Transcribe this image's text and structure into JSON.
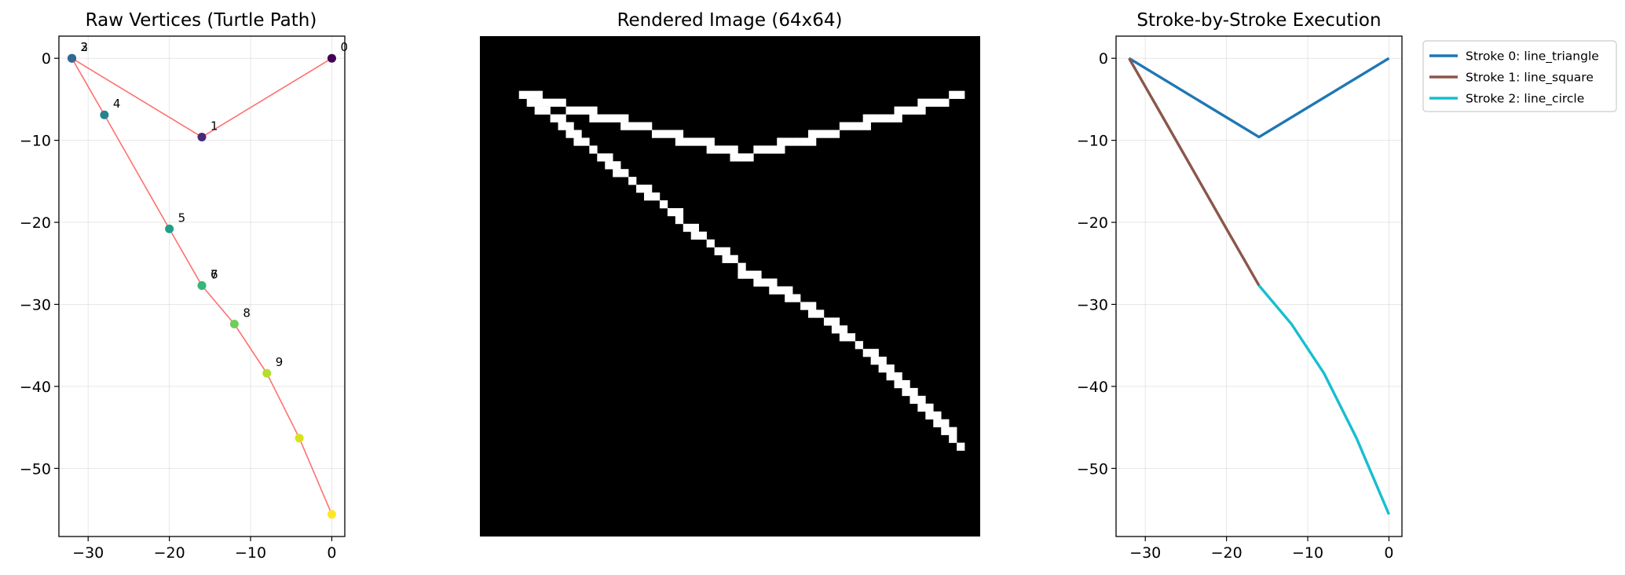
{
  "chart_data": [
    {
      "type": "scatter",
      "title": "Raw Vertices (Turtle Path)",
      "xlim": [
        -33.6,
        1.6
      ],
      "ylim": [
        -58.3,
        2.7
      ],
      "xticks": [
        -30,
        -20,
        -10,
        0
      ],
      "yticks": [
        0,
        -10,
        -20,
        -30,
        -40,
        -50
      ],
      "grid": true,
      "path_color": "#ff7070",
      "colormap": "viridis",
      "points": [
        {
          "label": "0",
          "x": 0,
          "y": 0,
          "color": "#440154"
        },
        {
          "label": "1",
          "x": -16,
          "y": -9.6,
          "color": "#482878"
        },
        {
          "label": "2",
          "x": -32,
          "y": 0,
          "color": "#3e4989"
        },
        {
          "label": "3",
          "x": -32,
          "y": 0,
          "color": "#31688e"
        },
        {
          "label": "4",
          "x": -28,
          "y": -6.9,
          "color": "#26828e"
        },
        {
          "label": "5",
          "x": -20,
          "y": -20.8,
          "color": "#1f9e89"
        },
        {
          "label": "6",
          "x": -16,
          "y": -27.7,
          "color": "#35b779"
        },
        {
          "label": "7",
          "x": -16,
          "y": -27.7,
          "color": "#35b779"
        },
        {
          "label": "8",
          "x": -12,
          "y": -32.4,
          "color": "#6ece58"
        },
        {
          "label": "9",
          "x": -8,
          "y": -38.4,
          "color": "#b5de2b"
        },
        {
          "label": "",
          "x": -4,
          "y": -46.3,
          "color": "#d8e219"
        },
        {
          "label": "",
          "x": 0,
          "y": -55.6,
          "color": "#fde725"
        }
      ]
    },
    {
      "type": "heatmap",
      "title": "Rendered Image (64x64)",
      "grid": false,
      "background": "#000000",
      "foreground": "#ffffff",
      "size": [
        64,
        64
      ]
    },
    {
      "type": "line",
      "title": "Stroke-by-Stroke Execution",
      "xlim": [
        -33.6,
        1.6
      ],
      "ylim": [
        -58.3,
        2.7
      ],
      "xticks": [
        -30,
        -20,
        -10,
        0
      ],
      "yticks": [
        0,
        -10,
        -20,
        -30,
        -40,
        -50
      ],
      "grid": true,
      "legend": "outside-top-right",
      "series": [
        {
          "name": "Stroke 0: line_triangle",
          "color": "#1f77b4",
          "x": [
            0,
            -16,
            -32
          ],
          "y": [
            0,
            -9.6,
            0
          ]
        },
        {
          "name": "Stroke 1: line_square",
          "color": "#8c564b",
          "x": [
            -32,
            -28,
            -20,
            -16
          ],
          "y": [
            0,
            -6.9,
            -20.8,
            -27.7
          ]
        },
        {
          "name": "Stroke 2: line_circle",
          "color": "#17becf",
          "x": [
            -16,
            -12,
            -8,
            -4,
            0
          ],
          "y": [
            -27.7,
            -32.4,
            -38.4,
            -46.3,
            -55.6
          ]
        }
      ]
    }
  ]
}
